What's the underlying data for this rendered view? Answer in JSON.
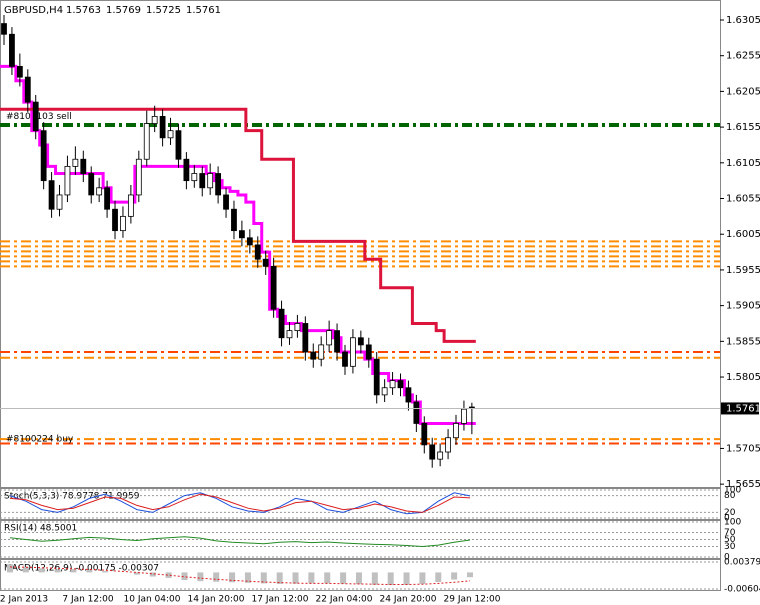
{
  "chart_data": {
    "type": "candlestick",
    "symbol": "GBPUSD,H4",
    "ohlc_header": [
      1.5763,
      1.5769,
      1.5725,
      1.5761
    ],
    "candles": [
      [
        1.63,
        1.6312,
        1.627,
        1.6285
      ],
      [
        1.6285,
        1.6295,
        1.6228,
        1.624
      ],
      [
        1.624,
        1.6258,
        1.6212,
        1.6225
      ],
      [
        1.6225,
        1.6236,
        1.6176,
        1.619
      ],
      [
        1.619,
        1.62,
        1.6138,
        1.615
      ],
      [
        1.615,
        1.6162,
        1.6068,
        1.608
      ],
      [
        1.608,
        1.6092,
        1.6028,
        1.604
      ],
      [
        1.604,
        1.6074,
        1.603,
        1.606
      ],
      [
        1.606,
        1.6115,
        1.605,
        1.61
      ],
      [
        1.61,
        1.6128,
        1.6088,
        1.611
      ],
      [
        1.611,
        1.6122,
        1.6078,
        1.609
      ],
      [
        1.609,
        1.61,
        1.6048,
        1.606
      ],
      [
        1.606,
        1.6084,
        1.605,
        1.607
      ],
      [
        1.607,
        1.608,
        1.6028,
        1.604
      ],
      [
        1.604,
        1.6052,
        1.5998,
        1.601
      ],
      [
        1.601,
        1.6044,
        1.6,
        1.603
      ],
      [
        1.603,
        1.6074,
        1.602,
        1.606
      ],
      [
        1.606,
        1.6122,
        1.605,
        1.611
      ],
      [
        1.611,
        1.6178,
        1.61,
        1.616
      ],
      [
        1.616,
        1.6185,
        1.6148,
        1.617
      ],
      [
        1.617,
        1.618,
        1.6128,
        1.614
      ],
      [
        1.614,
        1.6168,
        1.613,
        1.615
      ],
      [
        1.615,
        1.616,
        1.6098,
        1.611
      ],
      [
        1.611,
        1.612,
        1.6068,
        1.608
      ],
      [
        1.608,
        1.6102,
        1.607,
        1.609
      ],
      [
        1.609,
        1.61,
        1.6058,
        1.607
      ],
      [
        1.607,
        1.6104,
        1.606,
        1.609
      ],
      [
        1.609,
        1.61,
        1.6048,
        1.606
      ],
      [
        1.606,
        1.607,
        1.6028,
        1.604
      ],
      [
        1.604,
        1.6052,
        1.5998,
        1.601
      ],
      [
        1.601,
        1.6024,
        1.5988,
        1.6
      ],
      [
        1.6,
        1.6012,
        1.5978,
        1.599
      ],
      [
        1.599,
        1.6002,
        1.5958,
        1.597
      ],
      [
        1.597,
        1.5982,
        1.5948,
        1.596
      ],
      [
        1.596,
        1.5972,
        1.5888,
        1.59
      ],
      [
        1.59,
        1.5912,
        1.5848,
        1.586
      ],
      [
        1.586,
        1.5882,
        1.585,
        1.587
      ],
      [
        1.587,
        1.5892,
        1.586,
        1.588
      ],
      [
        1.588,
        1.589,
        1.5828,
        1.584
      ],
      [
        1.584,
        1.5852,
        1.5818,
        1.583
      ],
      [
        1.583,
        1.5862,
        1.582,
        1.585
      ],
      [
        1.585,
        1.5884,
        1.584,
        1.587
      ],
      [
        1.587,
        1.588,
        1.5828,
        1.584
      ],
      [
        1.584,
        1.585,
        1.5808,
        1.582
      ],
      [
        1.582,
        1.5872,
        1.581,
        1.586
      ],
      [
        1.586,
        1.587,
        1.5838,
        1.585
      ],
      [
        1.585,
        1.586,
        1.5818,
        1.583
      ],
      [
        1.583,
        1.584,
        1.5768,
        1.578
      ],
      [
        1.578,
        1.5802,
        1.577,
        1.579
      ],
      [
        1.579,
        1.5812,
        1.578,
        1.58
      ],
      [
        1.58,
        1.581,
        1.5778,
        1.579
      ],
      [
        1.579,
        1.58,
        1.5758,
        1.577
      ],
      [
        1.577,
        1.578,
        1.5728,
        1.574
      ],
      [
        1.574,
        1.575,
        1.5698,
        1.571
      ],
      [
        1.571,
        1.572,
        1.5678,
        1.569
      ],
      [
        1.569,
        1.5712,
        1.568,
        1.57
      ],
      [
        1.57,
        1.5732,
        1.569,
        1.572
      ],
      [
        1.572,
        1.5752,
        1.571,
        1.574
      ],
      [
        1.574,
        1.5772,
        1.573,
        1.576
      ],
      [
        1.5763,
        1.5769,
        1.5725,
        1.5761
      ]
    ],
    "series": [
      {
        "color": "#ff00ff",
        "values": [
          1.624,
          1.624,
          1.622,
          1.619,
          1.615,
          1.613,
          1.61,
          1.609,
          1.609,
          1.609,
          1.609,
          1.609,
          1.609,
          1.607,
          1.605,
          1.605,
          1.605,
          1.61,
          1.61,
          1.61,
          1.61,
          1.61,
          1.61,
          1.61,
          1.61,
          1.61,
          1.609,
          1.608,
          1.607,
          1.6065,
          1.606,
          1.605,
          1.602,
          1.598,
          1.59,
          1.589,
          1.588,
          1.588,
          1.587,
          1.587,
          1.587,
          1.587,
          1.586,
          1.584,
          1.584,
          1.584,
          1.583,
          1.581,
          1.581,
          1.58,
          1.58,
          1.578,
          1.577,
          1.574,
          1.574,
          1.574,
          1.574,
          1.574,
          1.574,
          1.574
        ]
      },
      {
        "color": "#dc143c",
        "values": [
          1.618,
          1.618,
          1.618,
          1.618,
          1.618,
          1.618,
          1.618,
          1.618,
          1.618,
          1.618,
          1.618,
          1.618,
          1.618,
          1.618,
          1.618,
          1.618,
          1.618,
          1.618,
          1.618,
          1.618,
          1.618,
          1.618,
          1.618,
          1.618,
          1.618,
          1.618,
          1.618,
          1.618,
          1.618,
          1.618,
          1.618,
          1.615,
          1.615,
          1.611,
          1.611,
          1.611,
          1.611,
          1.5995,
          1.5995,
          1.5995,
          1.5995,
          1.5995,
          1.5995,
          1.5995,
          1.5995,
          1.5995,
          1.597,
          1.597,
          1.593,
          1.593,
          1.593,
          1.593,
          1.588,
          1.588,
          1.588,
          1.587,
          1.5855,
          1.5855,
          1.5855,
          1.5855
        ]
      }
    ],
    "levels": [
      {
        "value": 1.6158,
        "color": "#006400"
      },
      {
        "value": 1.5995,
        "color": "#ff8c00"
      },
      {
        "value": 1.5988,
        "color": "#ff8c00"
      },
      {
        "value": 1.5981,
        "color": "#ff8c00"
      },
      {
        "value": 1.5974,
        "color": "#ff8c00"
      },
      {
        "value": 1.5967,
        "color": "#ff8c00"
      },
      {
        "value": 1.596,
        "color": "#ff8c00"
      },
      {
        "value": 1.584,
        "color": "#ff4500"
      },
      {
        "value": 1.5832,
        "color": "#ff8c00"
      },
      {
        "value": 1.5718,
        "color": "#ff8c00"
      },
      {
        "value": 1.5712,
        "color": "#ff4500"
      }
    ],
    "orders": [
      {
        "label": "#8107103 sell",
        "value": 1.617
      },
      {
        "label": "#8100224 buy",
        "value": 1.5718
      }
    ],
    "ylim": [
      1.5651,
      1.6333
    ],
    "yticks": [
      1.6305,
      1.6255,
      1.6205,
      1.6155,
      1.6105,
      1.6055,
      1.6005,
      1.5955,
      1.5905,
      1.5855,
      1.5805,
      1.5705,
      1.5655
    ],
    "last_price": 1.5761,
    "time_labels": [
      "2 Jan 2013",
      "7 Jan 12:00",
      "10 Jan 04:00",
      "14 Jan 20:00",
      "17 Jan 12:00",
      "22 Jan 04:00",
      "24 Jan 20:00",
      "29 Jan 12:00"
    ],
    "stoch": {
      "title": "Stoch(5,3,3) 78.9778 71.9959",
      "ylim": [
        0,
        100
      ],
      "yticks": [
        0,
        20,
        80,
        100
      ],
      "main": [
        80,
        60,
        30,
        20,
        40,
        70,
        85,
        60,
        30,
        20,
        50,
        80,
        90,
        70,
        40,
        25,
        20,
        40,
        70,
        60,
        30,
        20,
        40,
        60,
        30,
        15,
        20,
        60,
        90,
        78.9778
      ],
      "signal": [
        70,
        65,
        45,
        30,
        35,
        55,
        75,
        70,
        45,
        30,
        40,
        65,
        85,
        75,
        55,
        35,
        25,
        35,
        55,
        60,
        45,
        30,
        35,
        50,
        40,
        25,
        20,
        45,
        75,
        71.9959
      ]
    },
    "rsi": {
      "title": "RSI(14) 48.5001",
      "ylim": [
        0,
        100
      ],
      "yticks": [
        0,
        30,
        50,
        70,
        100
      ],
      "values": [
        55,
        50,
        45,
        48,
        52,
        56,
        54,
        50,
        47,
        52,
        55,
        58,
        54,
        46,
        42,
        40,
        38,
        42,
        44,
        41,
        43,
        40,
        38,
        36,
        35,
        33,
        30,
        34,
        42,
        48.5001
      ]
    },
    "macd": {
      "title": "MACD(12,26,9) -0.00175 -0.00307",
      "ylim": [
        -0.00604,
        0.00379
      ],
      "yticks": [
        0.00379,
        -0.00604
      ],
      "values": [
        0.003,
        0.002,
        0.0015,
        0.001,
        0.0012,
        0.001,
        0.0005,
        0,
        -0.0008,
        -0.0015,
        -0.002,
        -0.0028,
        -0.0032,
        -0.0034,
        -0.0036,
        -0.0038,
        -0.004,
        -0.0042,
        -0.0041,
        -0.004,
        -0.004,
        -0.0041,
        -0.0043,
        -0.0045,
        -0.0046,
        -0.0045,
        -0.0042,
        -0.0035,
        -0.0026,
        -0.00175
      ],
      "signal": [
        0.002,
        0.0019,
        0.0017,
        0.0015,
        0.0013,
        0.0011,
        0.0008,
        0.0004,
        0,
        -0.0005,
        -0.001,
        -0.0016,
        -0.0021,
        -0.0025,
        -0.0029,
        -0.0032,
        -0.0035,
        -0.0037,
        -0.0039,
        -0.004,
        -0.004,
        -0.0041,
        -0.0042,
        -0.0043,
        -0.0044,
        -0.0044,
        -0.0043,
        -0.004,
        -0.0036,
        -0.00307
      ]
    }
  }
}
